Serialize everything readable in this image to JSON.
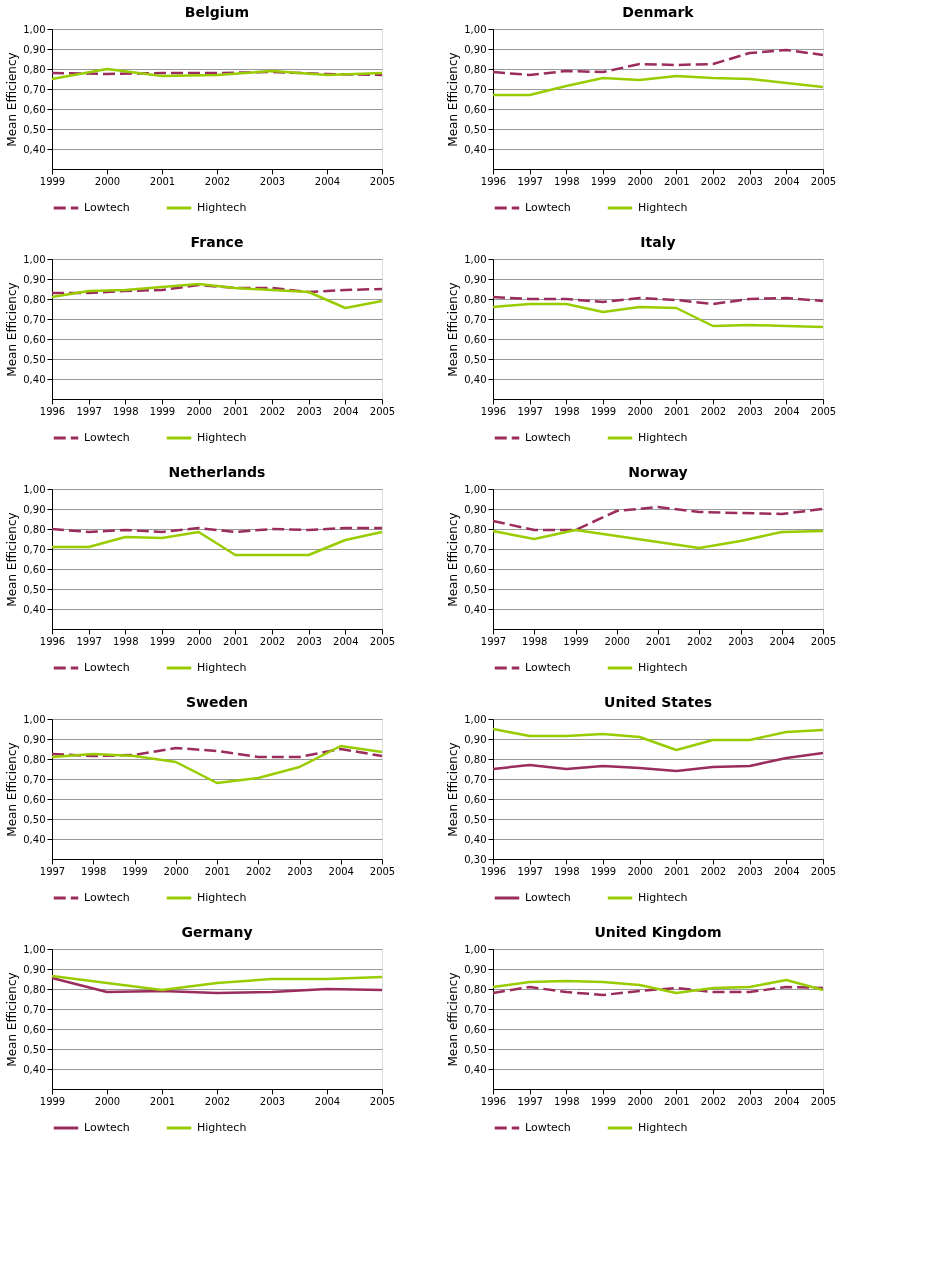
{
  "chart_data": [
    {
      "type": "line",
      "title": "Belgium",
      "ylabel": "Mean Efficiency",
      "categories": [
        "1999",
        "2000",
        "2001",
        "2002",
        "2003",
        "2004",
        "2005"
      ],
      "ylim": [
        0.3,
        1.0
      ],
      "yticks": [
        {
          "value": 0.4,
          "label": "0,40"
        },
        {
          "value": 0.5,
          "label": "0,50"
        },
        {
          "value": 0.6,
          "label": "0,60"
        },
        {
          "value": 0.7,
          "label": "0,70"
        },
        {
          "value": 0.8,
          "label": "0,80"
        },
        {
          "value": 0.9,
          "label": "0,90"
        },
        {
          "value": 1.0,
          "label": "1,00"
        }
      ],
      "grid": "y",
      "legend": "bottom",
      "series": [
        {
          "name": "Lowtech",
          "color": "#9b2c5e",
          "line_style": "dashed",
          "values": [
            0.78,
            0.775,
            0.78,
            0.78,
            0.785,
            0.775,
            0.77
          ]
        },
        {
          "name": "Hightech",
          "color": "#99cc00",
          "line_style": "solid",
          "values": [
            0.75,
            0.8,
            0.765,
            0.77,
            0.79,
            0.77,
            0.78
          ]
        }
      ]
    },
    {
      "type": "line",
      "title": "Denmark",
      "ylabel": "Mean Efficiency",
      "categories": [
        "1996",
        "1997",
        "1998",
        "1999",
        "2000",
        "2001",
        "2002",
        "2003",
        "2004",
        "2005"
      ],
      "ylim": [
        0.3,
        1.0
      ],
      "yticks": [
        {
          "value": 0.4,
          "label": "0,40"
        },
        {
          "value": 0.5,
          "label": "0,50"
        },
        {
          "value": 0.6,
          "label": "0,60"
        },
        {
          "value": 0.7,
          "label": "0,70"
        },
        {
          "value": 0.8,
          "label": "0,80"
        },
        {
          "value": 0.9,
          "label": "0,90"
        },
        {
          "value": 1.0,
          "label": "1,00"
        }
      ],
      "grid": "y",
      "legend": "bottom",
      "series": [
        {
          "name": "Lowtech",
          "color": "#9b2c5e",
          "line_style": "dashed",
          "values": [
            0.785,
            0.77,
            0.79,
            0.785,
            0.825,
            0.82,
            0.825,
            0.88,
            0.895,
            0.87
          ]
        },
        {
          "name": "Hightech",
          "color": "#99cc00",
          "line_style": "solid",
          "values": [
            0.67,
            0.67,
            0.715,
            0.755,
            0.745,
            0.765,
            0.755,
            0.75,
            0.73,
            0.71
          ]
        }
      ]
    },
    {
      "type": "line",
      "title": "France",
      "ylabel": "Mean Efficiency",
      "categories": [
        "1996",
        "1997",
        "1998",
        "1999",
        "2000",
        "2001",
        "2002",
        "2003",
        "2004",
        "2005"
      ],
      "ylim": [
        0.3,
        1.0
      ],
      "yticks": [
        {
          "value": 0.4,
          "label": "0,40"
        },
        {
          "value": 0.5,
          "label": "0,50"
        },
        {
          "value": 0.6,
          "label": "0,60"
        },
        {
          "value": 0.7,
          "label": "0,70"
        },
        {
          "value": 0.8,
          "label": "0,80"
        },
        {
          "value": 0.9,
          "label": "0,90"
        },
        {
          "value": 1.0,
          "label": "1,00"
        }
      ],
      "grid": "y",
      "legend": "bottom",
      "series": [
        {
          "name": "Lowtech",
          "color": "#9b2c5e",
          "line_style": "dashed",
          "values": [
            0.83,
            0.83,
            0.84,
            0.845,
            0.87,
            0.855,
            0.855,
            0.835,
            0.845,
            0.85
          ]
        },
        {
          "name": "Hightech",
          "color": "#99cc00",
          "line_style": "solid",
          "values": [
            0.81,
            0.84,
            0.845,
            0.86,
            0.875,
            0.855,
            0.845,
            0.835,
            0.755,
            0.79
          ]
        }
      ]
    },
    {
      "type": "line",
      "title": "Italy",
      "ylabel": "Mean Efficiency",
      "categories": [
        "1996",
        "1997",
        "1998",
        "1999",
        "2000",
        "2001",
        "2002",
        "2003",
        "2004",
        "2005"
      ],
      "ylim": [
        0.3,
        1.0
      ],
      "yticks": [
        {
          "value": 0.4,
          "label": "0,40"
        },
        {
          "value": 0.5,
          "label": "0,50"
        },
        {
          "value": 0.6,
          "label": "0,60"
        },
        {
          "value": 0.7,
          "label": "0,70"
        },
        {
          "value": 0.8,
          "label": "0,80"
        },
        {
          "value": 0.9,
          "label": "0,90"
        },
        {
          "value": 1.0,
          "label": "1,00"
        }
      ],
      "grid": "y",
      "legend": "bottom",
      "series": [
        {
          "name": "Lowtech",
          "color": "#9b2c5e",
          "line_style": "dashed",
          "values": [
            0.81,
            0.8,
            0.8,
            0.785,
            0.805,
            0.795,
            0.775,
            0.8,
            0.805,
            0.79
          ]
        },
        {
          "name": "Hightech",
          "color": "#99cc00",
          "line_style": "solid",
          "values": [
            0.76,
            0.775,
            0.775,
            0.735,
            0.76,
            0.755,
            0.665,
            0.67,
            0.665,
            0.66
          ]
        }
      ]
    },
    {
      "type": "line",
      "title": "Netherlands",
      "ylabel": "Mean Efficiency",
      "categories": [
        "1996",
        "1997",
        "1998",
        "1999",
        "2000",
        "2001",
        "2002",
        "2003",
        "2004",
        "2005"
      ],
      "ylim": [
        0.3,
        1.0
      ],
      "yticks": [
        {
          "value": 0.4,
          "label": "0,40"
        },
        {
          "value": 0.5,
          "label": "0,50"
        },
        {
          "value": 0.6,
          "label": "0,60"
        },
        {
          "value": 0.7,
          "label": "0,70"
        },
        {
          "value": 0.8,
          "label": "0,80"
        },
        {
          "value": 0.9,
          "label": "0,90"
        },
        {
          "value": 1.0,
          "label": "1,00"
        }
      ],
      "grid": "y",
      "legend": "bottom",
      "series": [
        {
          "name": "Lowtech",
          "color": "#9b2c5e",
          "line_style": "dashed",
          "values": [
            0.8,
            0.785,
            0.795,
            0.785,
            0.805,
            0.785,
            0.8,
            0.795,
            0.805,
            0.805
          ]
        },
        {
          "name": "Hightech",
          "color": "#99cc00",
          "line_style": "solid",
          "values": [
            0.71,
            0.71,
            0.76,
            0.755,
            0.785,
            0.67,
            0.67,
            0.67,
            0.745,
            0.785
          ]
        }
      ]
    },
    {
      "type": "line",
      "title": "Norway",
      "ylabel": "Mean Efficiency",
      "categories": [
        "1997",
        "1998",
        "1999",
        "2000",
        "2001",
        "2002",
        "2003",
        "2004",
        "2005"
      ],
      "ylim": [
        0.3,
        1.0
      ],
      "yticks": [
        {
          "value": 0.4,
          "label": "0,40"
        },
        {
          "value": 0.5,
          "label": "0,50"
        },
        {
          "value": 0.6,
          "label": "0,60"
        },
        {
          "value": 0.7,
          "label": "0,70"
        },
        {
          "value": 0.8,
          "label": "0,80"
        },
        {
          "value": 0.9,
          "label": "0,90"
        },
        {
          "value": 1.0,
          "label": "1,00"
        }
      ],
      "grid": "y",
      "legend": "bottom",
      "series": [
        {
          "name": "Lowtech",
          "color": "#9b2c5e",
          "line_style": "dashed",
          "values": [
            0.84,
            0.795,
            0.795,
            0.89,
            0.91,
            0.885,
            0.88,
            0.875,
            0.9
          ]
        },
        {
          "name": "Hightech",
          "color": "#99cc00",
          "line_style": "solid",
          "values": [
            0.79,
            0.75,
            0.795,
            0.765,
            0.735,
            0.705,
            0.74,
            0.785,
            0.79
          ]
        }
      ]
    },
    {
      "type": "line",
      "title": "Sweden",
      "ylabel": "Mean Efficiency",
      "categories": [
        "1997",
        "1998",
        "1999",
        "2000",
        "2001",
        "2002",
        "2003",
        "2004",
        "2005"
      ],
      "ylim": [
        0.3,
        1.0
      ],
      "yticks": [
        {
          "value": 0.4,
          "label": "0,40"
        },
        {
          "value": 0.5,
          "label": "0,50"
        },
        {
          "value": 0.6,
          "label": "0,60"
        },
        {
          "value": 0.7,
          "label": "0,70"
        },
        {
          "value": 0.8,
          "label": "0,80"
        },
        {
          "value": 0.9,
          "label": "0,90"
        },
        {
          "value": 1.0,
          "label": "1,00"
        }
      ],
      "grid": "y",
      "legend": "bottom",
      "series": [
        {
          "name": "Lowtech",
          "color": "#9b2c5e",
          "line_style": "dashed",
          "values": [
            0.825,
            0.815,
            0.82,
            0.855,
            0.84,
            0.81,
            0.81,
            0.85,
            0.815
          ]
        },
        {
          "name": "Hightech",
          "color": "#99cc00",
          "line_style": "solid",
          "values": [
            0.81,
            0.825,
            0.815,
            0.785,
            0.68,
            0.705,
            0.76,
            0.865,
            0.835
          ]
        }
      ]
    },
    {
      "type": "line",
      "title": "United States",
      "ylabel": "Mean Efficiency",
      "categories": [
        "1996",
        "1997",
        "1998",
        "1999",
        "2000",
        "2001",
        "2002",
        "2003",
        "2004",
        "2005"
      ],
      "ylim": [
        0.3,
        1.0
      ],
      "yticks": [
        {
          "value": 0.3,
          "label": "0,30"
        },
        {
          "value": 0.4,
          "label": "0,40"
        },
        {
          "value": 0.5,
          "label": "0,50"
        },
        {
          "value": 0.6,
          "label": "0,60"
        },
        {
          "value": 0.7,
          "label": "0,70"
        },
        {
          "value": 0.8,
          "label": "0,80"
        },
        {
          "value": 0.9,
          "label": "0,90"
        },
        {
          "value": 1.0,
          "label": "1,00"
        }
      ],
      "grid": "y",
      "legend": "bottom",
      "series": [
        {
          "name": "Lowtech",
          "color": "#9b2c5e",
          "line_style": "solid",
          "values": [
            0.75,
            0.77,
            0.75,
            0.765,
            0.755,
            0.74,
            0.76,
            0.765,
            0.805,
            0.83
          ]
        },
        {
          "name": "Hightech",
          "color": "#99cc00",
          "line_style": "solid",
          "values": [
            0.95,
            0.915,
            0.915,
            0.925,
            0.91,
            0.845,
            0.895,
            0.895,
            0.935,
            0.945
          ]
        }
      ]
    },
    {
      "type": "line",
      "title": "Germany",
      "ylabel": "Mean Efficiency",
      "categories": [
        "1999",
        "2000",
        "2001",
        "2002",
        "2003",
        "2004",
        "2005"
      ],
      "ylim": [
        0.3,
        1.0
      ],
      "yticks": [
        {
          "value": 0.4,
          "label": "0,40"
        },
        {
          "value": 0.5,
          "label": "0,50"
        },
        {
          "value": 0.6,
          "label": "0,60"
        },
        {
          "value": 0.7,
          "label": "0,70"
        },
        {
          "value": 0.8,
          "label": "0,80"
        },
        {
          "value": 0.9,
          "label": "0,90"
        },
        {
          "value": 1.0,
          "label": "1,00"
        }
      ],
      "grid": "y",
      "legend": "bottom",
      "series": [
        {
          "name": "Lowtech",
          "color": "#9b2c5e",
          "line_style": "solid",
          "values": [
            0.855,
            0.785,
            0.79,
            0.78,
            0.785,
            0.8,
            0.795
          ]
        },
        {
          "name": "Hightech",
          "color": "#99cc00",
          "line_style": "solid",
          "values": [
            0.865,
            0.83,
            0.795,
            0.83,
            0.85,
            0.85,
            0.86
          ]
        }
      ]
    },
    {
      "type": "line",
      "title": "United Kingdom",
      "ylabel": "Mean efficiency",
      "categories": [
        "1996",
        "1997",
        "1998",
        "1999",
        "2000",
        "2001",
        "2002",
        "2003",
        "2004",
        "2005"
      ],
      "ylim": [
        0.3,
        1.0
      ],
      "yticks": [
        {
          "value": 0.4,
          "label": "0,40"
        },
        {
          "value": 0.5,
          "label": "0,50"
        },
        {
          "value": 0.6,
          "label": "0,60"
        },
        {
          "value": 0.7,
          "label": "0,70"
        },
        {
          "value": 0.8,
          "label": "0,80"
        },
        {
          "value": 0.9,
          "label": "0,90"
        },
        {
          "value": 1.0,
          "label": "1,00"
        }
      ],
      "grid": "y",
      "legend": "bottom",
      "series": [
        {
          "name": "Lowtech",
          "color": "#9b2c5e",
          "line_style": "dashed",
          "values": [
            0.78,
            0.81,
            0.785,
            0.77,
            0.79,
            0.805,
            0.785,
            0.785,
            0.81,
            0.805
          ]
        },
        {
          "name": "Hightech",
          "color": "#99cc00",
          "line_style": "solid",
          "values": [
            0.81,
            0.835,
            0.84,
            0.835,
            0.82,
            0.78,
            0.805,
            0.81,
            0.845,
            0.795
          ]
        }
      ]
    }
  ]
}
